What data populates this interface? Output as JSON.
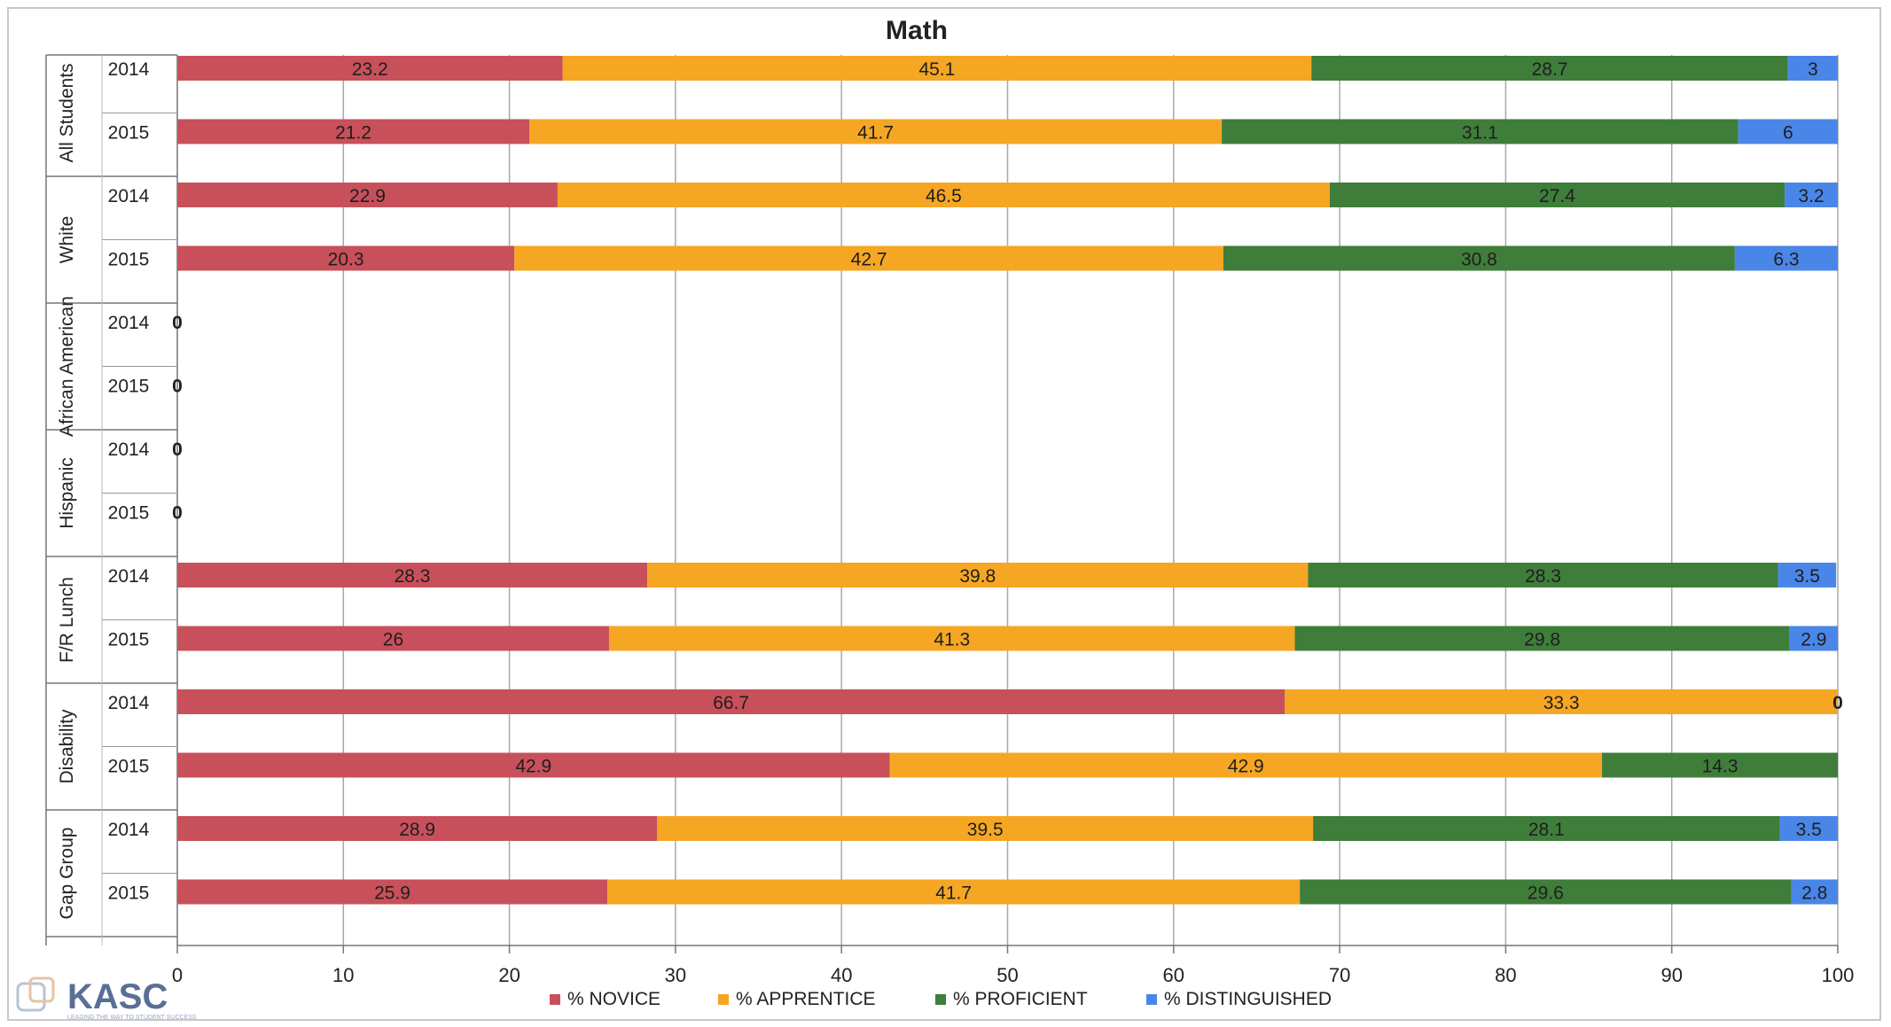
{
  "chart_data": {
    "type": "bar",
    "orientation": "horizontal",
    "stacked": true,
    "title": "Math",
    "xlim": [
      0,
      100
    ],
    "xticks": [
      0,
      10,
      20,
      30,
      40,
      50,
      60,
      70,
      80,
      90,
      100
    ],
    "grid": "vertical",
    "legend_position": "bottom",
    "groups": [
      {
        "name": "All Students",
        "rows": [
          "2014",
          "2015"
        ]
      },
      {
        "name": "White",
        "rows": [
          "2014",
          "2015"
        ]
      },
      {
        "name": "African American",
        "rows": [
          "2014",
          "2015"
        ]
      },
      {
        "name": "Hispanic",
        "rows": [
          "2014",
          "2015"
        ]
      },
      {
        "name": "F/R Lunch",
        "rows": [
          "2014",
          "2015"
        ]
      },
      {
        "name": "Disability",
        "rows": [
          "2014",
          "2015"
        ]
      },
      {
        "name": "Gap Group",
        "rows": [
          "2014",
          "2015"
        ]
      }
    ],
    "series": [
      {
        "name": "% NOVICE",
        "color": "#c8505a",
        "values": [
          23.2,
          21.2,
          22.9,
          20.3,
          0,
          0,
          0,
          0,
          28.3,
          26,
          66.7,
          42.9,
          28.9,
          25.9
        ]
      },
      {
        "name": "% APPRENTICE",
        "color": "#f5a623",
        "values": [
          45.1,
          41.7,
          46.5,
          42.7,
          0,
          0,
          0,
          0,
          39.8,
          41.3,
          33.3,
          42.9,
          39.5,
          41.7
        ]
      },
      {
        "name": "% PROFICIENT",
        "color": "#3f7d3a",
        "values": [
          28.7,
          31.1,
          27.4,
          30.8,
          0,
          0,
          0,
          0,
          28.3,
          29.8,
          0,
          14.3,
          28.1,
          29.6
        ]
      },
      {
        "name": "% DISTINGUISHED",
        "color": "#4a86e8",
        "values": [
          3,
          6,
          3.2,
          6.3,
          0,
          0,
          0,
          0,
          3.5,
          2.9,
          0,
          0,
          3.5,
          2.8
        ]
      }
    ],
    "zero_labels": [
      {
        "row": 4,
        "text": "0"
      },
      {
        "row": 5,
        "text": "0"
      },
      {
        "row": 6,
        "text": "0"
      },
      {
        "row": 7,
        "text": "0"
      },
      {
        "row": 10,
        "text": "0"
      }
    ]
  },
  "logo": {
    "text": "KASC",
    "tagline": "LEADING THE WAY TO STUDENT SUCCESS"
  }
}
